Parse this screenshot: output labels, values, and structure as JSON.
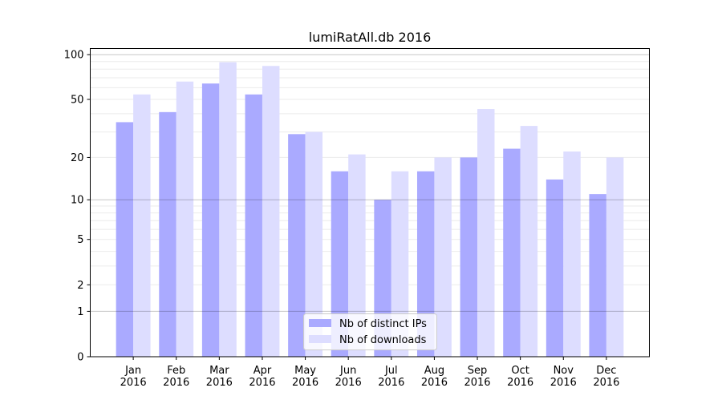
{
  "chart_data": {
    "type": "bar",
    "title": "lumiRatAll.db 2016",
    "xlabel": "",
    "ylabel": "",
    "yscale": "log(1+y)",
    "ylim": [
      0,
      110
    ],
    "yticks": [
      0,
      1,
      2,
      5,
      10,
      20,
      50,
      100
    ],
    "grid": true,
    "legend_position": "lower center",
    "categories": [
      "Jan\n2016",
      "Feb\n2016",
      "Mar\n2016",
      "Apr\n2016",
      "May\n2016",
      "Jun\n2016",
      "Jul\n2016",
      "Aug\n2016",
      "Sep\n2016",
      "Oct\n2016",
      "Nov\n2016",
      "Dec\n2016"
    ],
    "series": [
      {
        "name": "Nb of distinct IPs",
        "color": "#aaaaff",
        "values": [
          35,
          41,
          64,
          54,
          29,
          16,
          10,
          16,
          20,
          23,
          14,
          11
        ]
      },
      {
        "name": "Nb of downloads",
        "color": "#ddddff",
        "values": [
          54,
          66,
          89,
          84,
          30,
          21,
          16,
          20,
          43,
          33,
          22,
          20
        ]
      }
    ]
  }
}
